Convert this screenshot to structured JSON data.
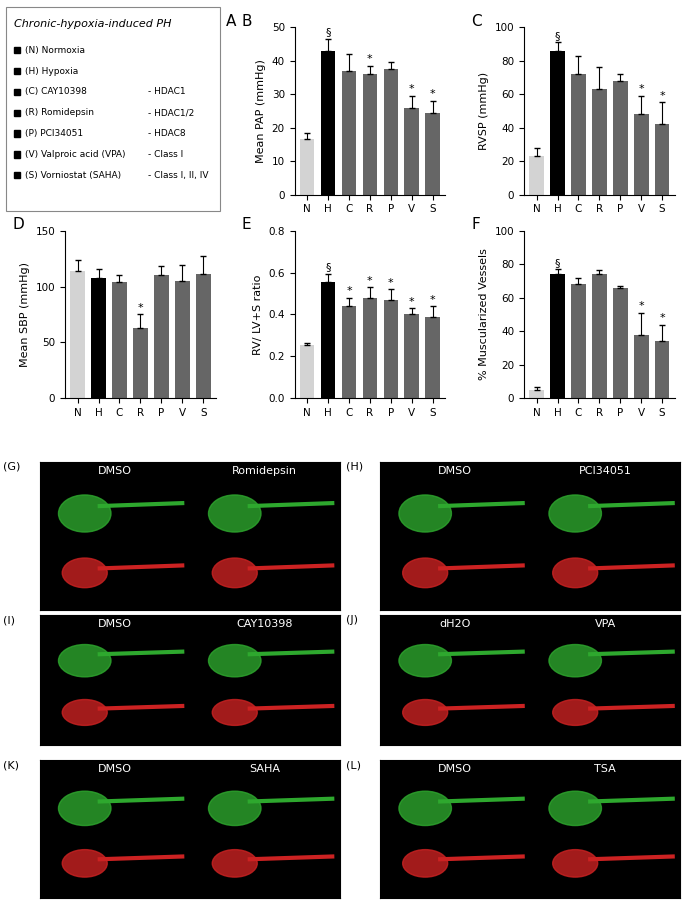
{
  "legend_box": {
    "title": "Chronic-hypoxia-induced PH",
    "label": "A",
    "items": [
      {
        "name": "(N) Normoxia"
      },
      {
        "name": "(H) Hypoxia"
      },
      {
        "name": "(C) CAY10398",
        "target": "- HDAC1"
      },
      {
        "name": "(R) Romidepsin",
        "target": "- HDAC1/2"
      },
      {
        "name": "(P) PCI34051",
        "target": "- HDAC8"
      },
      {
        "name": "(V) Valproic acid (VPA)",
        "target": "- Class I"
      },
      {
        "name": "(S) Vorniostat (SAHA)",
        "target": "- Class I, II, IV"
      }
    ]
  },
  "chart_data": [
    {
      "type": "bar",
      "title": "B",
      "y_label": "Mean PAP (mmHg)",
      "categories": [
        "N",
        "H",
        "C",
        "R",
        "P",
        "V",
        "S"
      ],
      "values": [
        16.5,
        43,
        37,
        36,
        37.5,
        26,
        24.5
      ],
      "errors": [
        2,
        3.5,
        5,
        2.5,
        2,
        3.5,
        3.5
      ],
      "annotations": [
        null,
        "§",
        null,
        "*",
        null,
        "*",
        "*"
      ],
      "colors": [
        "#d3d3d3",
        "#000000",
        "#666666",
        "#666666",
        "#666666",
        "#666666",
        "#666666"
      ],
      "ylim": [
        0,
        50
      ],
      "yticks": [
        0,
        10,
        20,
        30,
        40,
        50
      ]
    },
    {
      "type": "bar",
      "title": "C",
      "y_label": "RVSP (mmHg)",
      "categories": [
        "N",
        "H",
        "C",
        "R",
        "P",
        "V",
        "S"
      ],
      "values": [
        23,
        86,
        72,
        63,
        68,
        48,
        42
      ],
      "errors": [
        5,
        5,
        11,
        13,
        4,
        11,
        13
      ],
      "annotations": [
        null,
        "§",
        null,
        null,
        null,
        "*",
        "*"
      ],
      "colors": [
        "#d3d3d3",
        "#000000",
        "#666666",
        "#666666",
        "#666666",
        "#666666",
        "#666666"
      ],
      "ylim": [
        0,
        100
      ],
      "yticks": [
        0,
        20,
        40,
        60,
        80,
        100
      ]
    },
    {
      "type": "bar",
      "title": "D",
      "y_label": "Mean SBP (mmHg)",
      "categories": [
        "N",
        "H",
        "C",
        "R",
        "P",
        "V",
        "S"
      ],
      "values": [
        114,
        108,
        104,
        63,
        110,
        105,
        111
      ],
      "errors": [
        10,
        8,
        6,
        12,
        8,
        14,
        16
      ],
      "annotations": [
        null,
        null,
        null,
        "*",
        null,
        null,
        null
      ],
      "colors": [
        "#d3d3d3",
        "#000000",
        "#666666",
        "#666666",
        "#666666",
        "#666666",
        "#666666"
      ],
      "ylim": [
        0,
        150
      ],
      "yticks": [
        0,
        50,
        100,
        150
      ]
    },
    {
      "type": "bar",
      "title": "E",
      "y_label": "RV/ LV+S ratio",
      "categories": [
        "N",
        "H",
        "C",
        "R",
        "P",
        "V",
        "S"
      ],
      "values": [
        0.255,
        0.555,
        0.44,
        0.48,
        0.47,
        0.4,
        0.39
      ],
      "errors": [
        0.01,
        0.04,
        0.04,
        0.05,
        0.05,
        0.03,
        0.05
      ],
      "annotations": [
        null,
        "§",
        "*",
        "*",
        "*",
        "*",
        "*"
      ],
      "colors": [
        "#d3d3d3",
        "#000000",
        "#666666",
        "#666666",
        "#666666",
        "#666666",
        "#666666"
      ],
      "ylim": [
        0,
        0.8
      ],
      "yticks": [
        {
          "value": 0,
          "label": "0.0"
        },
        {
          "value": 0.2,
          "label": "0.2"
        },
        {
          "value": 0.4,
          "label": "0.4"
        },
        {
          "value": 0.6,
          "label": "0.6"
        },
        {
          "value": 0.8,
          "label": "0.8"
        }
      ]
    },
    {
      "type": "bar",
      "title": "F",
      "y_label": "% Muscularized Vessels",
      "categories": [
        "N",
        "H",
        "C",
        "R",
        "P",
        "V",
        "S"
      ],
      "values": [
        5,
        74,
        68,
        74,
        66,
        38,
        34
      ],
      "errors": [
        1.5,
        3,
        4,
        2.5,
        1,
        13,
        10
      ],
      "annotations": [
        null,
        "§",
        null,
        null,
        null,
        "*",
        "*"
      ],
      "colors": [
        "#d3d3d3",
        "#000000",
        "#666666",
        "#666666",
        "#666666",
        "#666666",
        "#666666"
      ],
      "ylim": [
        0,
        100
      ],
      "yticks": [
        0,
        20,
        40,
        60,
        80,
        100
      ]
    }
  ],
  "image_panels": [
    {
      "label": "(G)",
      "left": "DMSO",
      "right": "Romidepsin"
    },
    {
      "label": "(H)",
      "left": "DMSO",
      "right": "PCI34051"
    },
    {
      "label": "(I)",
      "left": "DMSO",
      "right": "CAY10398"
    },
    {
      "label": "(J)",
      "left": "dH2O",
      "right": "VPA"
    },
    {
      "label": "(K)",
      "left": "DMSO",
      "right": "SAHA"
    },
    {
      "label": "(L)",
      "left": "DMSO",
      "right": "TSA"
    }
  ]
}
